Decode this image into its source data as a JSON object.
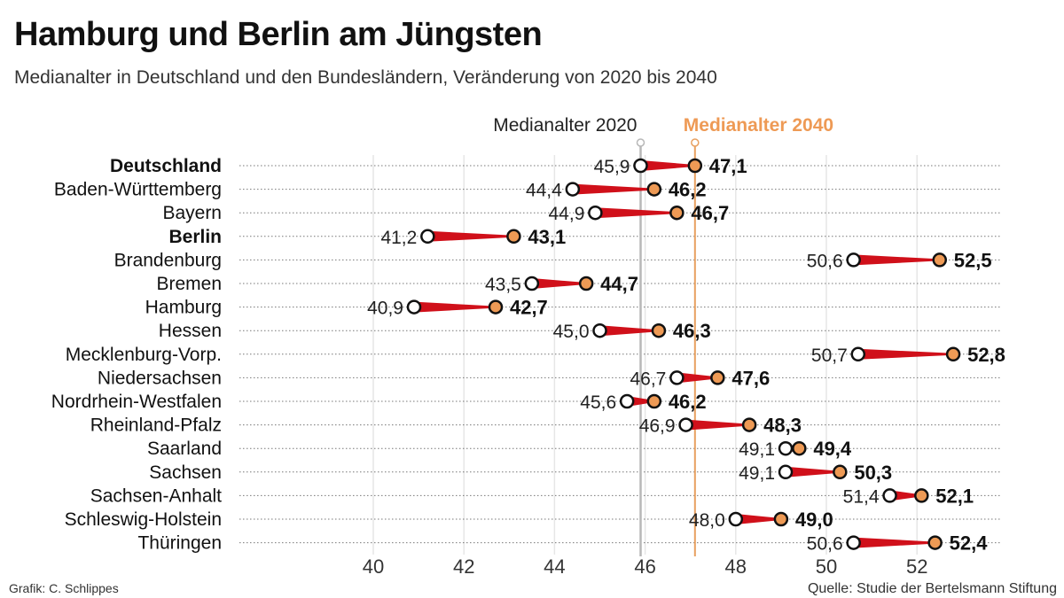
{
  "title": "Hamburg und Berlin am Jüngsten",
  "subtitle": "Medianalter in Deutschland und den Bundesländern, Veränderung von 2020 bis 2040",
  "credit": "Grafik: C. Schlippes",
  "source": "Quelle: Studie der Bertelsmann Stiftung",
  "chart_data": {
    "type": "dumbbell",
    "xlim": [
      39,
      53.5
    ],
    "xticks": [
      40,
      42,
      44,
      46,
      48,
      50,
      52
    ],
    "grid": true,
    "series": [
      {
        "name": "Medianalter 2020",
        "color": "#ffffff",
        "line_color": "#b8b8b8"
      },
      {
        "name": "Medianalter 2040",
        "color": "#ee9a55",
        "line_color": "#e8a060"
      }
    ],
    "reference_lines": {
      "Medianalter 2020": 45.9,
      "Medianalter 2040": 47.1
    },
    "connector_color": "#d0101a",
    "categories": [
      "Deutschland",
      "Baden-Württemberg",
      "Bayern",
      "Berlin",
      "Brandenburg",
      "Bremen",
      "Hamburg",
      "Hessen",
      "Mecklenburg-Vorp.",
      "Niedersachsen",
      "Nordrhein-Westfalen",
      "Rheinland-Pfalz",
      "Saarland",
      "Sachsen",
      "Sachsen-Anhalt",
      "Schleswig-Holstein",
      "Thüringen"
    ],
    "bold_categories": [
      "Deutschland",
      "Berlin"
    ],
    "values_2020": [
      45.9,
      44.4,
      44.9,
      41.2,
      50.6,
      43.5,
      40.9,
      45.0,
      50.7,
      46.7,
      45.6,
      46.9,
      49.1,
      49.1,
      51.4,
      48.0,
      50.6
    ],
    "values_2040": [
      47.1,
      46.2,
      46.7,
      43.1,
      52.5,
      44.7,
      42.7,
      46.3,
      52.8,
      47.6,
      46.2,
      48.3,
      49.4,
      50.3,
      52.1,
      49.0,
      52.4
    ]
  }
}
